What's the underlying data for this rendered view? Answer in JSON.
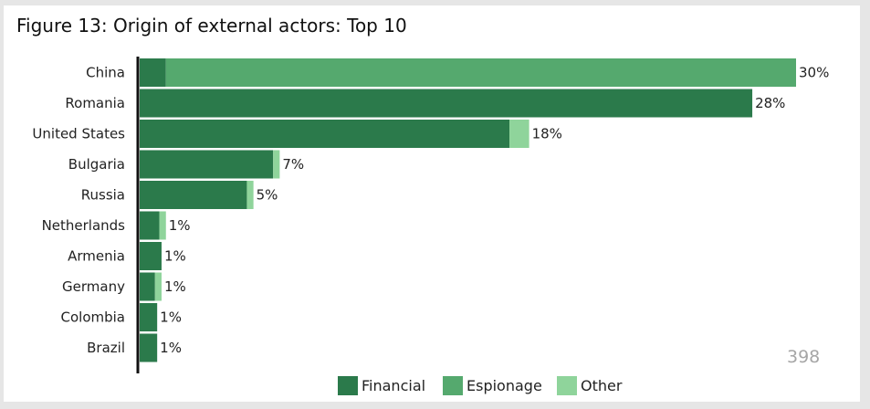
{
  "colors": {
    "financial": "#2b7a4b",
    "espionage": "#55a96e",
    "other": "#8fd49b",
    "axis": "#111111",
    "background": "#e6e6e6",
    "panel": "#ffffff"
  },
  "chart_data": {
    "type": "bar",
    "orientation": "horizontal",
    "stacked": true,
    "title": "Figure 13: Origin of external actors: Top 10",
    "categories": [
      "China",
      "Romania",
      "United States",
      "Bulgaria",
      "Russia",
      "Netherlands",
      "Armenia",
      "Germany",
      "Colombia",
      "Brazil"
    ],
    "totals": [
      30,
      28,
      18,
      7,
      5,
      1,
      1,
      1,
      1,
      1
    ],
    "total_labels": [
      "30%",
      "28%",
      "18%",
      "7%",
      "5%",
      "1%",
      "1%",
      "1%",
      "1%",
      "1%"
    ],
    "series": [
      {
        "name": "Financial",
        "values": [
          1.2,
          28,
          16.9,
          6.1,
          4.9,
          0.9,
          1.0,
          0.7,
          0.8,
          0.8
        ]
      },
      {
        "name": "Espionage",
        "values": [
          28.8,
          0,
          0,
          0,
          0,
          0,
          0,
          0,
          0,
          0
        ]
      },
      {
        "name": "Other",
        "values": [
          0,
          0,
          0.9,
          0.3,
          0.3,
          0.3,
          0,
          0.3,
          0,
          0
        ]
      }
    ],
    "xlim": [
      0,
      30
    ],
    "grid": false,
    "legend_position": "bottom-center",
    "annotation": "398"
  }
}
